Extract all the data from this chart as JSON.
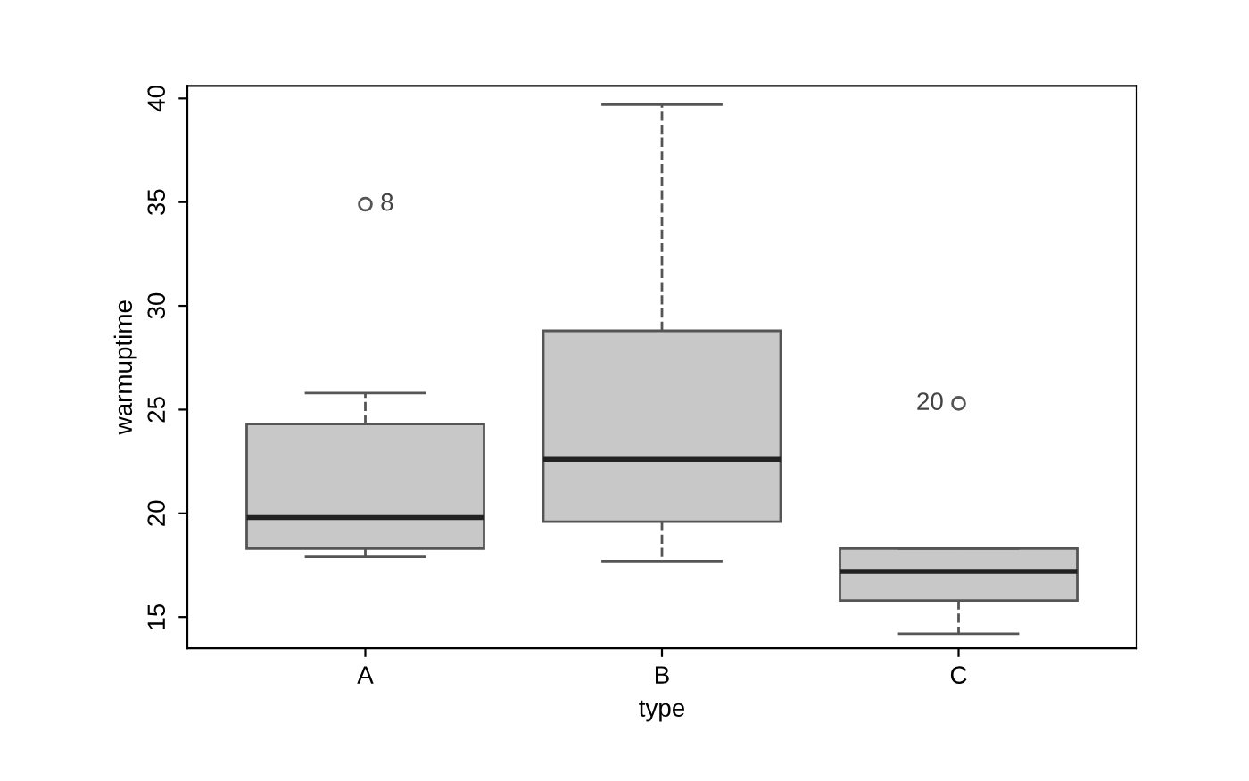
{
  "chart_data": {
    "type": "box",
    "xlabel": "type",
    "ylabel": "warmuptime",
    "categories": [
      "A",
      "B",
      "C"
    ],
    "boxes": [
      {
        "low": 17.9,
        "q1": 18.3,
        "median": 19.8,
        "q3": 24.3,
        "high": 25.8,
        "outliers": [
          34.9
        ]
      },
      {
        "low": 17.7,
        "q1": 19.6,
        "median": 22.6,
        "q3": 28.8,
        "high": 39.7
      },
      {
        "low": 14.2,
        "q1": 15.8,
        "median": 17.2,
        "q3": 18.3,
        "high": 18.3,
        "outliers": [
          25.3
        ]
      }
    ],
    "color": "#c8c8c8",
    "ylim": [
      13.5,
      40.6
    ],
    "yticks": [
      15,
      20,
      25,
      30,
      35,
      40
    ],
    "grid": false,
    "annotations": [
      "8",
      "20"
    ]
  }
}
